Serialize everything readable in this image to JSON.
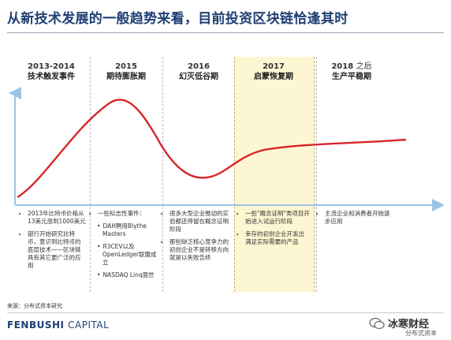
{
  "title": "从新技术发展的一般趋势来看，目前投资区块链恰逢其时",
  "phases": [
    {
      "year": "2013-2014",
      "name": "技术触发事件"
    },
    {
      "year": "2015",
      "name": "期待膨胀期"
    },
    {
      "year": "2016",
      "name": "幻灭低谷期"
    },
    {
      "year": "2017",
      "name": "启蒙恢复期"
    },
    {
      "year": "2018",
      "year_tail": "之后",
      "name": "生产平稳期"
    }
  ],
  "notes": {
    "col1": [
      "2013年比特币价格从13美元涨到1000美元",
      "银行开始研究比特币，意识到比特币的底层技术——区块链具有其它更广泛的应用"
    ],
    "col2_head": "一些标志性事件：",
    "col2": [
      "DAH聘用Blythe Masters",
      "R3CEV以及OpenLedger联盟成立",
      "NASDAQ Linq面世"
    ],
    "col3": [
      "很多大型企业推动的实验都还停留在概念证明阶段",
      "那些缺乏核心竞争力的初创企业不是转移方向就是以失败告终"
    ],
    "col4": [
      "一些\"概念证明\"类项目开始进入试运行阶段",
      "幸存的初创企业开发出满足实际需要的产品"
    ],
    "col5": [
      "主流企业和消费者开始逐步应用"
    ]
  },
  "source": "来源：分布式资本研究",
  "logo": {
    "bold": "FENBUSHI",
    "light": "CAPITAL"
  },
  "watermark": {
    "text": "冰寒财经",
    "sub": "分布式资本"
  },
  "colors": {
    "curve": "#d7262b",
    "title": "#1f3f73",
    "highlight": "#fdf6d2"
  }
}
